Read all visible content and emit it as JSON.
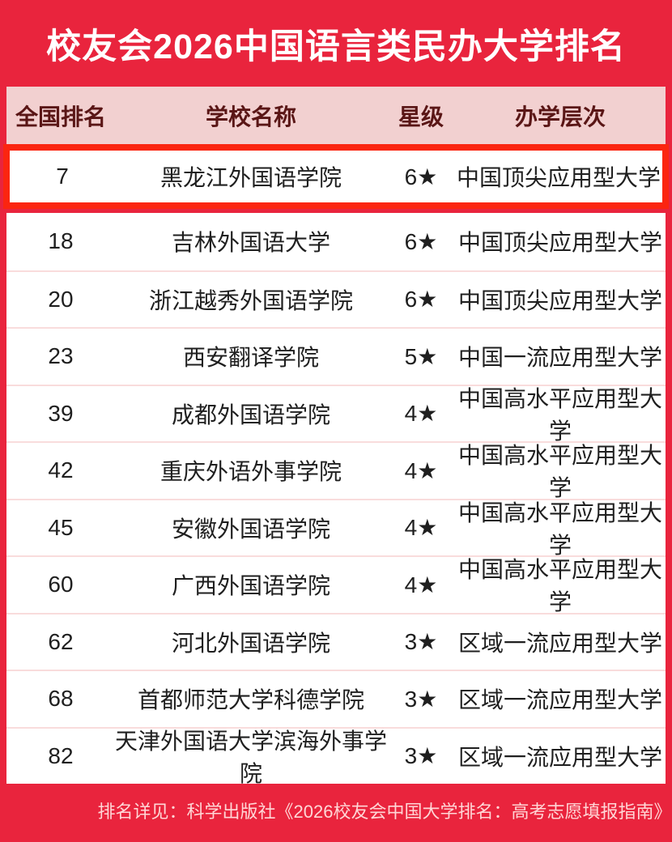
{
  "title": "校友会2026中国语言类民办大学排名",
  "table": {
    "columns": [
      "全国排名",
      "学校名称",
      "星级",
      "办学层次"
    ],
    "highlighted_row": {
      "rank": "7",
      "school": "黑龙江外国语学院",
      "stars": "6★",
      "level": "中国顶尖应用型大学"
    },
    "rows": [
      {
        "rank": "18",
        "school": "吉林外国语大学",
        "stars": "6★",
        "level": "中国顶尖应用型大学"
      },
      {
        "rank": "20",
        "school": "浙江越秀外国语学院",
        "stars": "6★",
        "level": "中国顶尖应用型大学"
      },
      {
        "rank": "23",
        "school": "西安翻译学院",
        "stars": "5★",
        "level": "中国一流应用型大学"
      },
      {
        "rank": "39",
        "school": "成都外国语学院",
        "stars": "4★",
        "level": "中国高水平应用型大学"
      },
      {
        "rank": "42",
        "school": "重庆外语外事学院",
        "stars": "4★",
        "level": "中国高水平应用型大学"
      },
      {
        "rank": "45",
        "school": "安徽外国语学院",
        "stars": "4★",
        "level": "中国高水平应用型大学"
      },
      {
        "rank": "60",
        "school": "广西外国语学院",
        "stars": "4★",
        "level": "中国高水平应用型大学"
      },
      {
        "rank": "62",
        "school": "河北外国语学院",
        "stars": "3★",
        "level": "区域一流应用型大学"
      },
      {
        "rank": "68",
        "school": "首都师范大学科德学院",
        "stars": "3★",
        "level": "区域一流应用型大学"
      },
      {
        "rank": "82",
        "school": "天津外国语大学滨海外事学院",
        "stars": "3★",
        "level": "区域一流应用型大学"
      }
    ]
  },
  "footer_note": "排名详见：科学出版社《2026校友会中国大学排名：高考志愿填报指南》",
  "colors": {
    "background": "#e9243d",
    "title_text": "#ffffff",
    "header_background": "#f2d0d0",
    "header_text": "#5a1616",
    "highlight_border": "#fb2510",
    "row_text": "#1f1f1f",
    "row_divider": "#f9dcdc",
    "footer_text": "#ffd6d6"
  },
  "chart_data": {
    "type": "table",
    "title": "校友会2026中国语言类民办大学排名",
    "columns": [
      "全国排名",
      "学校名称",
      "星级",
      "办学层次"
    ],
    "rows": [
      [
        "7",
        "黑龙江外国语学院",
        "6★",
        "中国顶尖应用型大学"
      ],
      [
        "18",
        "吉林外国语大学",
        "6★",
        "中国顶尖应用型大学"
      ],
      [
        "20",
        "浙江越秀外国语学院",
        "6★",
        "中国顶尖应用型大学"
      ],
      [
        "23",
        "西安翻译学院",
        "5★",
        "中国一流应用型大学"
      ],
      [
        "39",
        "成都外国语学院",
        "4★",
        "中国高水平应用型大学"
      ],
      [
        "42",
        "重庆外语外事学院",
        "4★",
        "中国高水平应用型大学"
      ],
      [
        "45",
        "安徽外国语学院",
        "4★",
        "中国高水平应用型大学"
      ],
      [
        "60",
        "广西外国语学院",
        "4★",
        "中国高水平应用型大学"
      ],
      [
        "62",
        "河北外国语学院",
        "3★",
        "区域一流应用型大学"
      ],
      [
        "68",
        "首都师范大学科德学院",
        "3★",
        "区域一流应用型大学"
      ],
      [
        "82",
        "天津外国语大学滨海外事学院",
        "3★",
        "区域一流应用型大学"
      ]
    ],
    "highlighted_row_index": 0,
    "footnote": "排名详见：科学出版社《2026校友会中国大学排名：高考志愿填报指南》"
  }
}
